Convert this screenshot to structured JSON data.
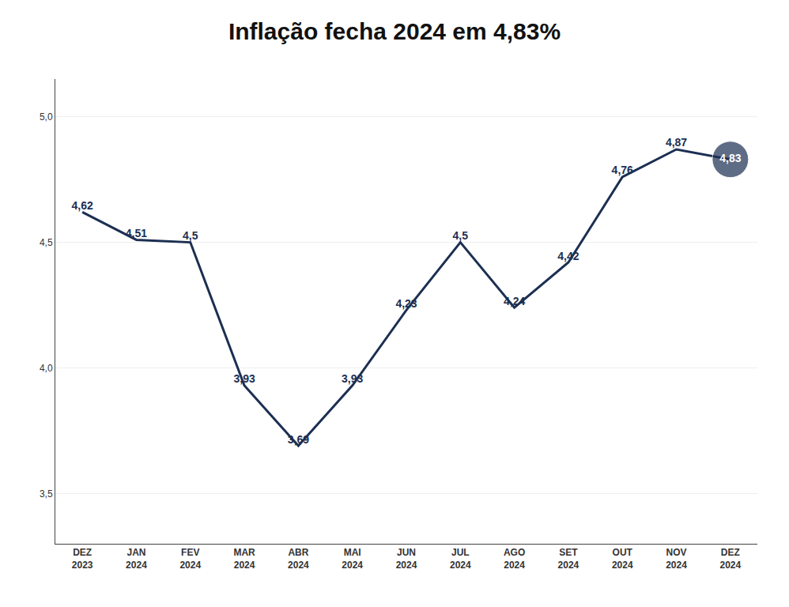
{
  "chart_data": {
    "type": "line",
    "title": "Inflação fecha 2024 em 4,83%",
    "categories": [
      "DEZ\n2023",
      "JAN\n2024",
      "FEV\n2024",
      "MAR\n2024",
      "ABR\n2024",
      "MAI\n2024",
      "JUN\n2024",
      "JUL\n2024",
      "AGO\n2024",
      "SET\n2024",
      "OUT\n2024",
      "NOV\n2024",
      "DEZ\n2024"
    ],
    "values": [
      4.62,
      4.51,
      4.5,
      3.93,
      3.69,
      3.93,
      4.23,
      4.5,
      4.24,
      4.42,
      4.76,
      4.87,
      4.83
    ],
    "value_labels": [
      "4,62",
      "4,51",
      "4,5",
      "3,93",
      "3,69",
      "3,93",
      "4,23",
      "4,5",
      "4,24",
      "4,42",
      "4,76",
      "4,87",
      "4,83"
    ],
    "data_labels": true,
    "color": "#1c2f52",
    "ylim": [
      3.3,
      5.15
    ],
    "yticks": [
      {
        "value": 3.5,
        "label": "3,5"
      },
      {
        "value": 4.0,
        "label": "4,0"
      },
      {
        "value": 4.5,
        "label": "4,5"
      },
      {
        "value": 5.0,
        "label": "5,0"
      }
    ],
    "grid": true
  }
}
